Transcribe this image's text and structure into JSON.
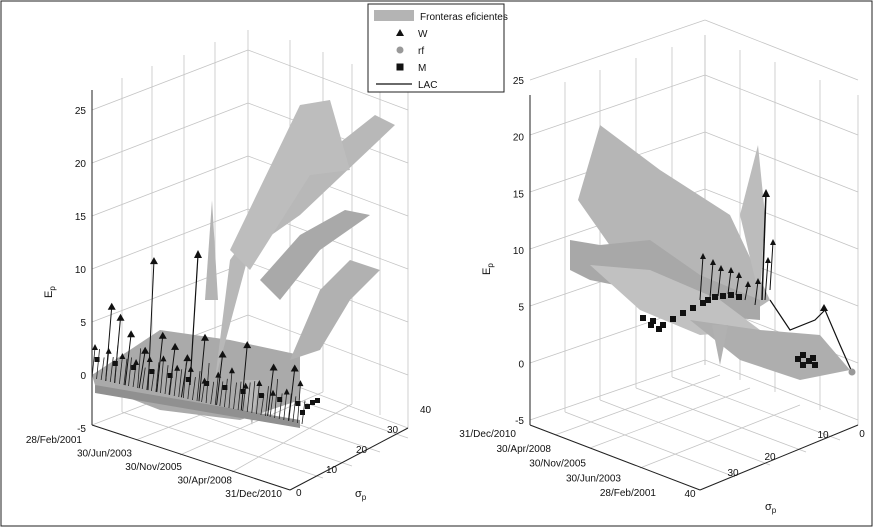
{
  "legend": {
    "items": [
      {
        "label": "Fronteras eficientes",
        "marker": "patch"
      },
      {
        "label": "W",
        "marker": "triangle"
      },
      {
        "label": "rf",
        "marker": "circle"
      },
      {
        "label": "M",
        "marker": "square"
      },
      {
        "label": "LAC",
        "marker": "line"
      }
    ]
  },
  "colors": {
    "surface": "#b4b4b4",
    "surface_dark": "#9a9a9a",
    "marker": "#111111",
    "grid": "#bdbdbd"
  },
  "chart_data": [
    {
      "type": "surface3d",
      "panel": "left",
      "zlabel_main": "E",
      "zlabel_sub": "p",
      "xlabel_main": "σ",
      "xlabel_sub": "p",
      "z_ticks": [
        "-5",
        "0",
        "5",
        "10",
        "15",
        "20",
        "25"
      ],
      "sigma_ticks": [
        "0",
        "10",
        "20",
        "30",
        "40"
      ],
      "date_ticks": [
        "28/Feb/2001",
        "30/Jun/2003",
        "30/Nov/2005",
        "30/Apr/2008",
        "31/Dec/2010"
      ],
      "zlim": [
        -5,
        25
      ],
      "sigma_lim": [
        0,
        40
      ],
      "grid": true,
      "surface_peaks": [
        {
          "date": "2003-01",
          "sigma": 22,
          "E": 12
        },
        {
          "date": "2006-06",
          "sigma": 40,
          "E": 23
        },
        {
          "date": "2009-06",
          "sigma": 33,
          "E": 13
        }
      ],
      "w_points": [
        {
          "date": "2001-10",
          "E": 6.5
        },
        {
          "date": "2002-03",
          "E": 5.5
        },
        {
          "date": "2002-09",
          "E": 4
        },
        {
          "date": "2003-05",
          "E": 2.5
        },
        {
          "date": "2003-10",
          "E": 11
        },
        {
          "date": "2004-03",
          "E": 4
        },
        {
          "date": "2004-10",
          "E": 3
        },
        {
          "date": "2005-05",
          "E": 2
        },
        {
          "date": "2006-03",
          "E": 4
        },
        {
          "date": "2007-01",
          "E": 2.5
        },
        {
          "date": "2008-03",
          "E": 3.5
        },
        {
          "date": "2009-06",
          "E": 1.5
        },
        {
          "date": "2010-06",
          "E": 1.5
        }
      ]
    },
    {
      "type": "surface3d",
      "panel": "right",
      "zlabel_main": "E",
      "zlabel_sub": "p",
      "xlabel_main": "σ",
      "xlabel_sub": "p",
      "z_ticks": [
        "-5",
        "0",
        "5",
        "10",
        "15",
        "20",
        "25"
      ],
      "sigma_ticks": [
        "0",
        "10",
        "20",
        "30",
        "40"
      ],
      "date_ticks": [
        "31/Dec/2010",
        "30/Apr/2008",
        "30/Nov/2005",
        "30/Jun/2003",
        "28/Feb/2001"
      ],
      "zlim": [
        -5,
        25
      ],
      "sigma_lim": [
        0,
        40
      ],
      "grid": true,
      "surface_peaks": [
        {
          "date": "2003-01",
          "sigma": 38,
          "E": 21
        },
        {
          "date": "2006-06",
          "sigma": 30,
          "E": 14
        },
        {
          "date": "2010-06",
          "sigma": 14,
          "E": 15
        }
      ],
      "w_points": [
        {
          "date": "2001-10",
          "E": 15
        },
        {
          "date": "2003-05",
          "E": 10
        },
        {
          "date": "2005-05",
          "E": 7
        },
        {
          "date": "2007-01",
          "E": 5
        },
        {
          "date": "2009-06",
          "E": 4
        },
        {
          "date": "2010-06",
          "E": 5
        }
      ]
    }
  ]
}
